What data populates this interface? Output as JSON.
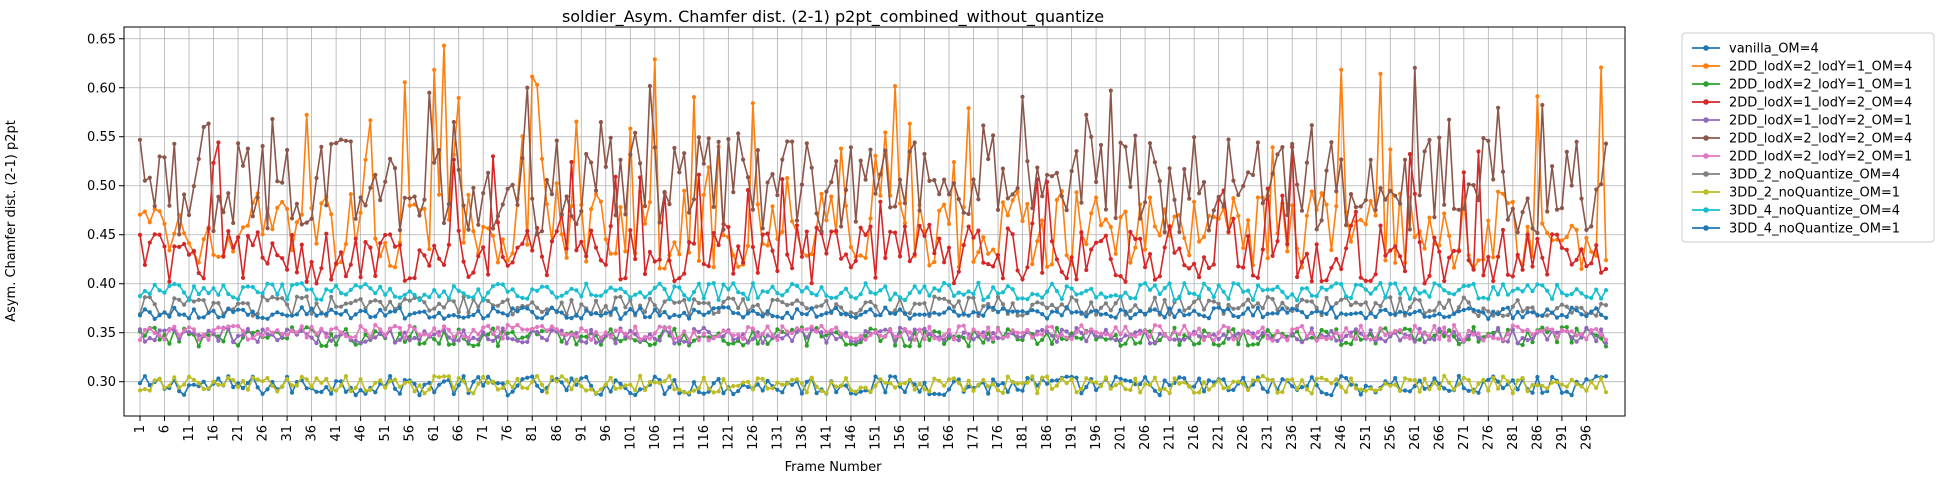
{
  "chart_data": {
    "type": "line",
    "title": "soldier_Asym. Chamfer dist. (2-1) p2pt_combined_without_quantize",
    "xlabel": "Frame Number",
    "ylabel": "Asym. Chamfer dist. (2-1) p2pt",
    "x_range": [
      1,
      300
    ],
    "x_step": 1,
    "xticks": [
      1,
      6,
      11,
      16,
      21,
      26,
      31,
      36,
      41,
      46,
      51,
      56,
      61,
      66,
      71,
      76,
      81,
      86,
      91,
      96,
      101,
      106,
      111,
      116,
      121,
      126,
      131,
      136,
      141,
      146,
      151,
      156,
      161,
      166,
      171,
      176,
      181,
      186,
      191,
      196,
      201,
      206,
      211,
      216,
      221,
      226,
      231,
      236,
      241,
      246,
      251,
      256,
      261,
      266,
      271,
      276,
      281,
      286,
      291,
      296
    ],
    "ylim": [
      0.265,
      0.662
    ],
    "yticks": [
      0.3,
      0.35,
      0.4,
      0.45,
      0.5,
      0.55,
      0.6,
      0.65
    ],
    "ytick_labels": [
      "0.30",
      "0.35",
      "0.40",
      "0.45",
      "0.50",
      "0.55",
      "0.60",
      "0.65"
    ],
    "grid": true,
    "legend_position": "outside-right-top",
    "series": [
      {
        "name": "vanilla_OM=4",
        "color": "#1f77b4",
        "level": 0.296,
        "spread": 0.01,
        "spikes": 0.0
      },
      {
        "name": "2DD_lodX=2_lodY=1_OM=4",
        "color": "#ff7f0e",
        "level": 0.455,
        "spread": 0.04,
        "spikes": 0.16
      },
      {
        "name": "2DD_lodX=2_lodY=1_OM=1",
        "color": "#2ca02c",
        "level": 0.346,
        "spread": 0.01,
        "spikes": 0.0
      },
      {
        "name": "2DD_lodX=1_lodY=2_OM=4",
        "color": "#d62728",
        "level": 0.43,
        "spread": 0.03,
        "spikes": 0.12
      },
      {
        "name": "2DD_lodX=1_lodY=2_OM=1",
        "color": "#9467bd",
        "level": 0.347,
        "spread": 0.008,
        "spikes": 0.0
      },
      {
        "name": "2DD_lodX=2_lodY=2_OM=4",
        "color": "#8c564b",
        "level": 0.5,
        "spread": 0.05,
        "spikes": 0.1
      },
      {
        "name": "2DD_lodX=2_lodY=2_OM=1",
        "color": "#e377c2",
        "level": 0.35,
        "spread": 0.008,
        "spikes": 0.0
      },
      {
        "name": "3DD_2_noQuantize_OM=4",
        "color": "#7f7f7f",
        "level": 0.377,
        "spread": 0.01,
        "spikes": 0.0
      },
      {
        "name": "3DD_2_noQuantize_OM=1",
        "color": "#bcbd22",
        "level": 0.297,
        "spread": 0.009,
        "spikes": 0.0
      },
      {
        "name": "3DD_4_noQuantize_OM=4",
        "color": "#17becf",
        "level": 0.392,
        "spread": 0.009,
        "spikes": 0.0
      },
      {
        "name": "3DD_4_noQuantize_OM=1",
        "color": "#1f77b4",
        "level": 0.37,
        "spread": 0.006,
        "spikes": 0.0
      }
    ]
  }
}
